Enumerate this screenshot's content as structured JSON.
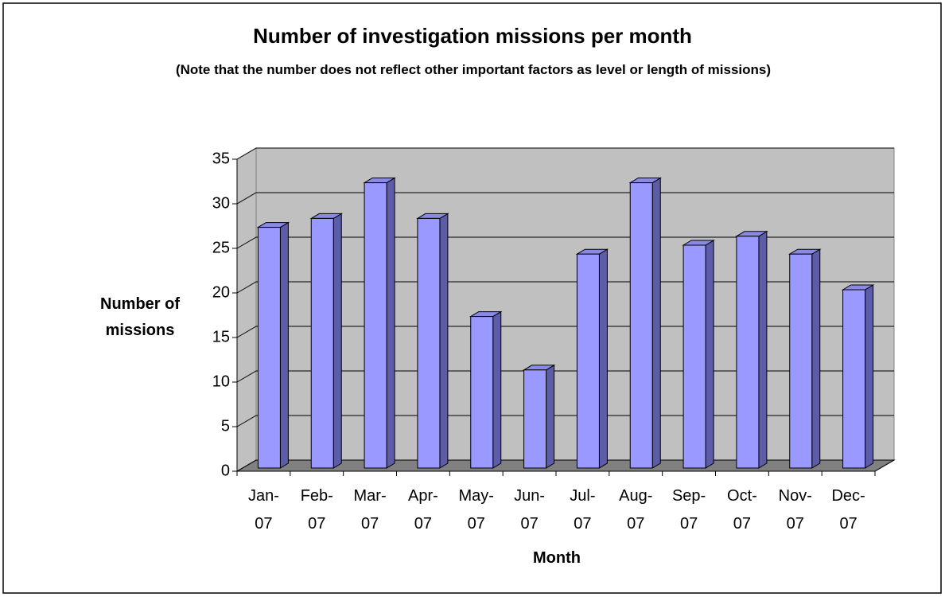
{
  "chart_data": {
    "type": "bar3d",
    "title": "Number of investigation missions per month",
    "subtitle": "(Note that the number does not reflect other important factors as level or length of missions)",
    "x_label": "Month",
    "y_label": "Number of missions",
    "categories": [
      "Jan-07",
      "Feb-07",
      "Mar-07",
      "Apr-07",
      "May-07",
      "Jun-07",
      "Jul-07",
      "Aug-07",
      "Sep-07",
      "Oct-07",
      "Nov-07",
      "Dec-07"
    ],
    "values": [
      27,
      28,
      32,
      28,
      17,
      11,
      24,
      32,
      25,
      26,
      24,
      20
    ],
    "color": "#9999ff",
    "ylim": [
      0,
      35
    ],
    "yticks": [
      0,
      5,
      10,
      15,
      20,
      25,
      30,
      35
    ],
    "grid": true
  }
}
